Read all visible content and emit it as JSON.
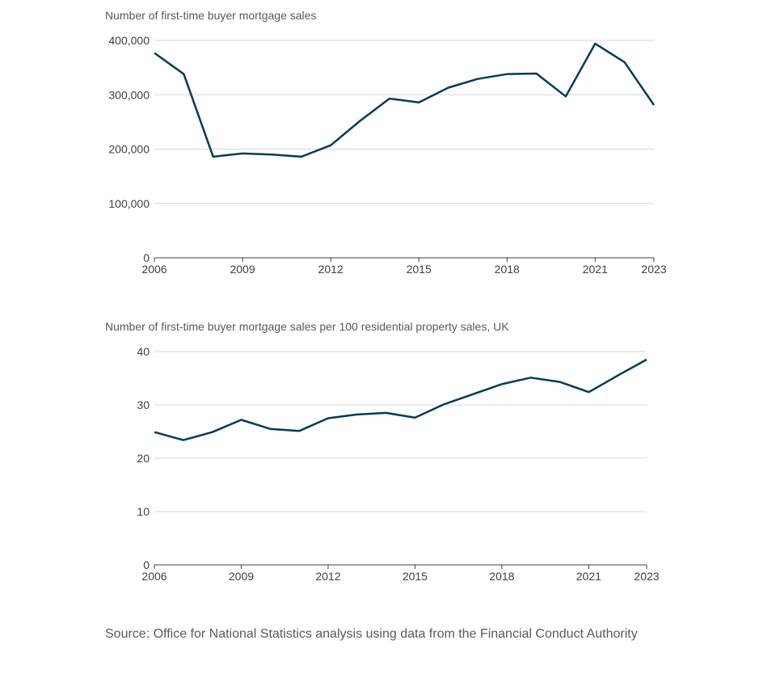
{
  "source": "Source: Office for National Statistics analysis using data from the Financial Conduct Authority",
  "chart_data": [
    {
      "type": "line",
      "title": "Number of first-time buyer mortgage sales",
      "x": [
        2006,
        2007,
        2008,
        2009,
        2010,
        2011,
        2012,
        2013,
        2014,
        2015,
        2016,
        2017,
        2018,
        2019,
        2020,
        2021,
        2022,
        2023
      ],
      "series": [
        {
          "values": [
            377000,
            338000,
            186000,
            192000,
            190000,
            186000,
            207000,
            252000,
            293000,
            286000,
            313000,
            329000,
            338000,
            339000,
            297000,
            394000,
            360000,
            281000
          ],
          "color": "#003c57"
        }
      ],
      "xticks": [
        "2006",
        "2009",
        "2012",
        "2015",
        "2018",
        "2021",
        "2023"
      ],
      "yticks": [
        "0",
        "100,000",
        "200,000",
        "300,000",
        "400,000"
      ],
      "xlim": [
        2006,
        2023
      ],
      "ylim": [
        0,
        400000
      ],
      "grid": true
    },
    {
      "type": "line",
      "title": "Number of first-time buyer mortgage sales per 100 residential property sales, UK",
      "x": [
        2006,
        2007,
        2008,
        2009,
        2010,
        2011,
        2012,
        2013,
        2014,
        2015,
        2016,
        2017,
        2018,
        2019,
        2020,
        2021,
        2022,
        2023
      ],
      "series": [
        {
          "values": [
            24.9,
            23.4,
            24.9,
            27.2,
            25.5,
            25.1,
            27.5,
            28.2,
            28.5,
            27.6,
            30.1,
            32.0,
            33.9,
            35.1,
            34.3,
            32.4,
            35.5,
            38.5
          ],
          "color": "#003c57"
        }
      ],
      "xticks": [
        "2006",
        "2009",
        "2012",
        "2015",
        "2018",
        "2021",
        "2023"
      ],
      "yticks": [
        "0",
        "10",
        "20",
        "30",
        "40"
      ],
      "xlim": [
        2006,
        2023
      ],
      "ylim": [
        0,
        40
      ],
      "grid": true
    }
  ]
}
